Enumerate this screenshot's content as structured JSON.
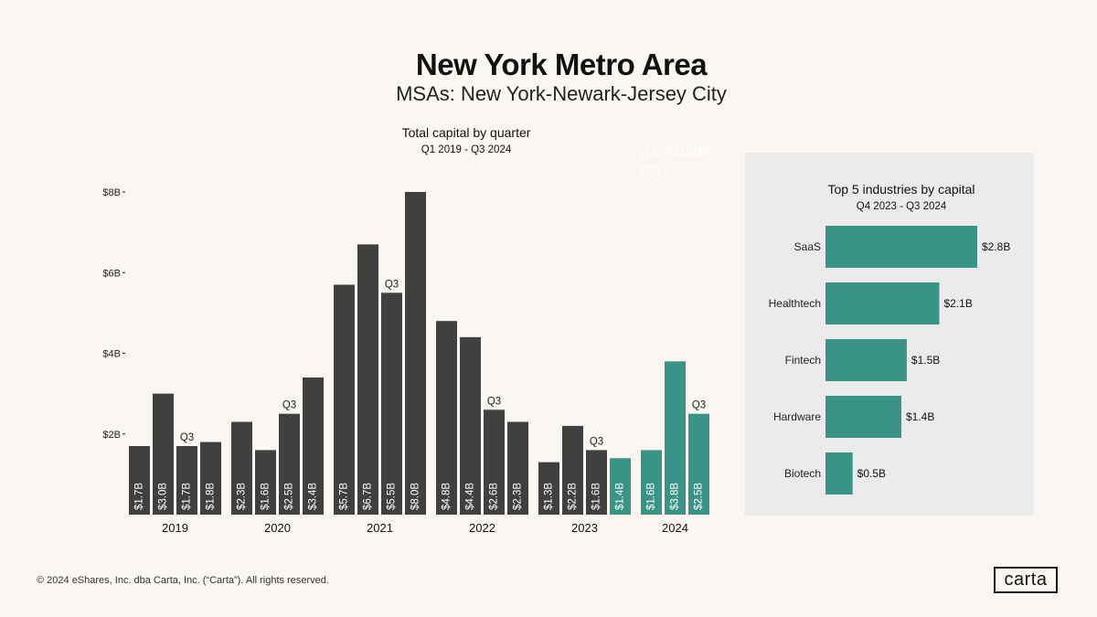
{
  "header": {
    "title": "New York Metro Area",
    "subtitle": "MSAs: New York-Newark-Jersey City"
  },
  "overlay_text": [
    "21 Austin",
    "(2)"
  ],
  "chart_data": [
    {
      "type": "bar",
      "title": "Total capital by quarter",
      "subtitle": "Q1 2019 - Q3 2024",
      "ylim": [
        0,
        8
      ],
      "yticks": [
        {
          "value": 2,
          "label": "$2B"
        },
        {
          "value": 4,
          "label": "$4B"
        },
        {
          "value": 6,
          "label": "$6B"
        },
        {
          "value": 8,
          "label": "$8B"
        }
      ],
      "years": [
        {
          "year": "2019",
          "bars": [
            {
              "value": 1.7,
              "label": "$1.7B",
              "highlight": false,
              "q3": false
            },
            {
              "value": 3.0,
              "label": "$3.0B",
              "highlight": false,
              "q3": false
            },
            {
              "value": 1.7,
              "label": "$1.7B",
              "highlight": false,
              "q3": true
            },
            {
              "value": 1.8,
              "label": "$1.8B",
              "highlight": false,
              "q3": false
            }
          ]
        },
        {
          "year": "2020",
          "bars": [
            {
              "value": 2.3,
              "label": "$2.3B",
              "highlight": false,
              "q3": false
            },
            {
              "value": 1.6,
              "label": "$1.6B",
              "highlight": false,
              "q3": false
            },
            {
              "value": 2.5,
              "label": "$2.5B",
              "highlight": false,
              "q3": true
            },
            {
              "value": 3.4,
              "label": "$3.4B",
              "highlight": false,
              "q3": false
            }
          ]
        },
        {
          "year": "2021",
          "bars": [
            {
              "value": 5.7,
              "label": "$5.7B",
              "highlight": false,
              "q3": false
            },
            {
              "value": 6.7,
              "label": "$6.7B",
              "highlight": false,
              "q3": false
            },
            {
              "value": 5.5,
              "label": "$5.5B",
              "highlight": false,
              "q3": true
            },
            {
              "value": 8.0,
              "label": "$8.0B",
              "highlight": false,
              "q3": false
            }
          ]
        },
        {
          "year": "2022",
          "bars": [
            {
              "value": 4.8,
              "label": "$4.8B",
              "highlight": false,
              "q3": false
            },
            {
              "value": 4.4,
              "label": "$4.4B",
              "highlight": false,
              "q3": false
            },
            {
              "value": 2.6,
              "label": "$2.6B",
              "highlight": false,
              "q3": true
            },
            {
              "value": 2.3,
              "label": "$2.3B",
              "highlight": false,
              "q3": false
            }
          ]
        },
        {
          "year": "2023",
          "bars": [
            {
              "value": 1.3,
              "label": "$1.3B",
              "highlight": false,
              "q3": false
            },
            {
              "value": 2.2,
              "label": "$2.2B",
              "highlight": false,
              "q3": false
            },
            {
              "value": 1.6,
              "label": "$1.6B",
              "highlight": false,
              "q3": true
            },
            {
              "value": 1.4,
              "label": "$1.4B",
              "highlight": true,
              "q3": false
            }
          ]
        },
        {
          "year": "2024",
          "bars": [
            {
              "value": 1.6,
              "label": "$1.6B",
              "highlight": true,
              "q3": false
            },
            {
              "value": 3.8,
              "label": "$3.8B",
              "highlight": true,
              "q3": false
            },
            {
              "value": 2.5,
              "label": "$2.5B",
              "highlight": true,
              "q3": true
            }
          ]
        }
      ],
      "q3_label": "Q3",
      "colors": {
        "default": "#404040",
        "highlight": "#3a9486"
      }
    },
    {
      "type": "bar",
      "orientation": "horizontal",
      "title": "Top 5 industries by capital",
      "subtitle": "Q4 2023 - Q3 2024",
      "categories": [
        "SaaS",
        "Healthtech",
        "Fintech",
        "Hardware",
        "Biotech"
      ],
      "values": [
        2.8,
        2.1,
        1.5,
        1.4,
        0.5
      ],
      "value_labels": [
        "$2.8B",
        "$2.1B",
        "$1.5B",
        "$1.4B",
        "$0.5B"
      ],
      "color": "#3a9486"
    }
  ],
  "footer": {
    "copyright": "© 2024 eShares, Inc. dba Carta, Inc. (“Carta”). All rights reserved.",
    "logo": "carta"
  }
}
